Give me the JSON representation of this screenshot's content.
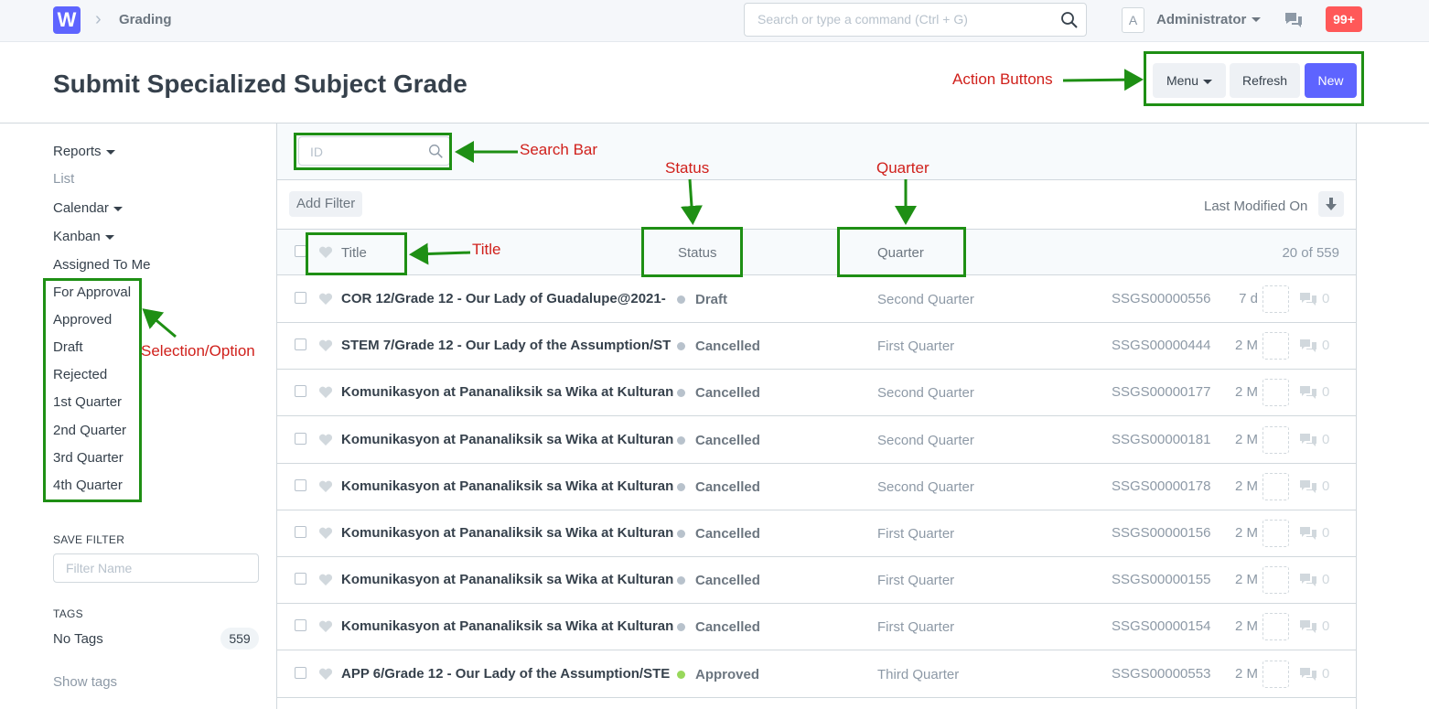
{
  "navbar": {
    "logo_letter": "W",
    "breadcrumb": "Grading",
    "search_placeholder": "Search or type a command (Ctrl + G)",
    "avatar_letter": "A",
    "user": "Administrator",
    "notifications": "99+"
  },
  "page": {
    "title": "Submit Specialized Subject Grade",
    "menu_label": "Menu",
    "refresh_label": "Refresh",
    "new_label": "New"
  },
  "sidebar": {
    "views": [
      "Reports",
      "List",
      "Calendar",
      "Kanban",
      "Assigned To Me"
    ],
    "filters": [
      "For Approval",
      "Approved",
      "Draft",
      "Rejected",
      "1st Quarter",
      "2nd Quarter",
      "3rd Quarter",
      "4th Quarter"
    ],
    "save_filter_label": "SAVE FILTER",
    "filter_name_placeholder": "Filter Name",
    "tags_label": "TAGS",
    "no_tags": "No Tags",
    "no_tags_count": "559",
    "show_tags": "Show tags"
  },
  "list": {
    "id_placeholder": "ID",
    "add_filter": "Add Filter",
    "sort_label": "Last Modified On",
    "columns": {
      "title": "Title",
      "status": "Status",
      "quarter": "Quarter"
    },
    "count": "20 of 559",
    "rows": [
      {
        "title": "COR 12/Grade 12 - Our Lady of Guadalupe@2021-",
        "status": "Draft",
        "quarter": "Second Quarter",
        "id": "SSGS00000556",
        "modified": "7 d",
        "comments": "0"
      },
      {
        "title": "STEM 7/Grade 12 - Our Lady of the Assumption/ST",
        "status": "Cancelled",
        "quarter": "First Quarter",
        "id": "SSGS00000444",
        "modified": "2 M",
        "comments": "0"
      },
      {
        "title": "Komunikasyon at Pananaliksik sa Wika at Kulturan",
        "status": "Cancelled",
        "quarter": "Second Quarter",
        "id": "SSGS00000177",
        "modified": "2 M",
        "comments": "0"
      },
      {
        "title": "Komunikasyon at Pananaliksik sa Wika at Kulturan",
        "status": "Cancelled",
        "quarter": "Second Quarter",
        "id": "SSGS00000181",
        "modified": "2 M",
        "comments": "0"
      },
      {
        "title": "Komunikasyon at Pananaliksik sa Wika at Kulturan",
        "status": "Cancelled",
        "quarter": "Second Quarter",
        "id": "SSGS00000178",
        "modified": "2 M",
        "comments": "0"
      },
      {
        "title": "Komunikasyon at Pananaliksik sa Wika at Kulturan",
        "status": "Cancelled",
        "quarter": "First Quarter",
        "id": "SSGS00000156",
        "modified": "2 M",
        "comments": "0"
      },
      {
        "title": "Komunikasyon at Pananaliksik sa Wika at Kulturan",
        "status": "Cancelled",
        "quarter": "First Quarter",
        "id": "SSGS00000155",
        "modified": "2 M",
        "comments": "0"
      },
      {
        "title": "Komunikasyon at Pananaliksik sa Wika at Kulturan",
        "status": "Cancelled",
        "quarter": "First Quarter",
        "id": "SSGS00000154",
        "modified": "2 M",
        "comments": "0"
      },
      {
        "title": "APP 6/Grade 12 - Our Lady of the Assumption/STE",
        "status": "Approved",
        "quarter": "Third Quarter",
        "id": "SSGS00000553",
        "modified": "2 M",
        "comments": "0"
      }
    ]
  },
  "status_colors": {
    "Draft": "#b8c2cc",
    "Cancelled": "#b8c2cc",
    "Approved": "#98d85b"
  },
  "annotations": {
    "action_buttons": "Action Buttons",
    "search_bar": "Search Bar",
    "status": "Status",
    "quarter": "Quarter",
    "title": "Title",
    "selection": "Selection/Option"
  }
}
